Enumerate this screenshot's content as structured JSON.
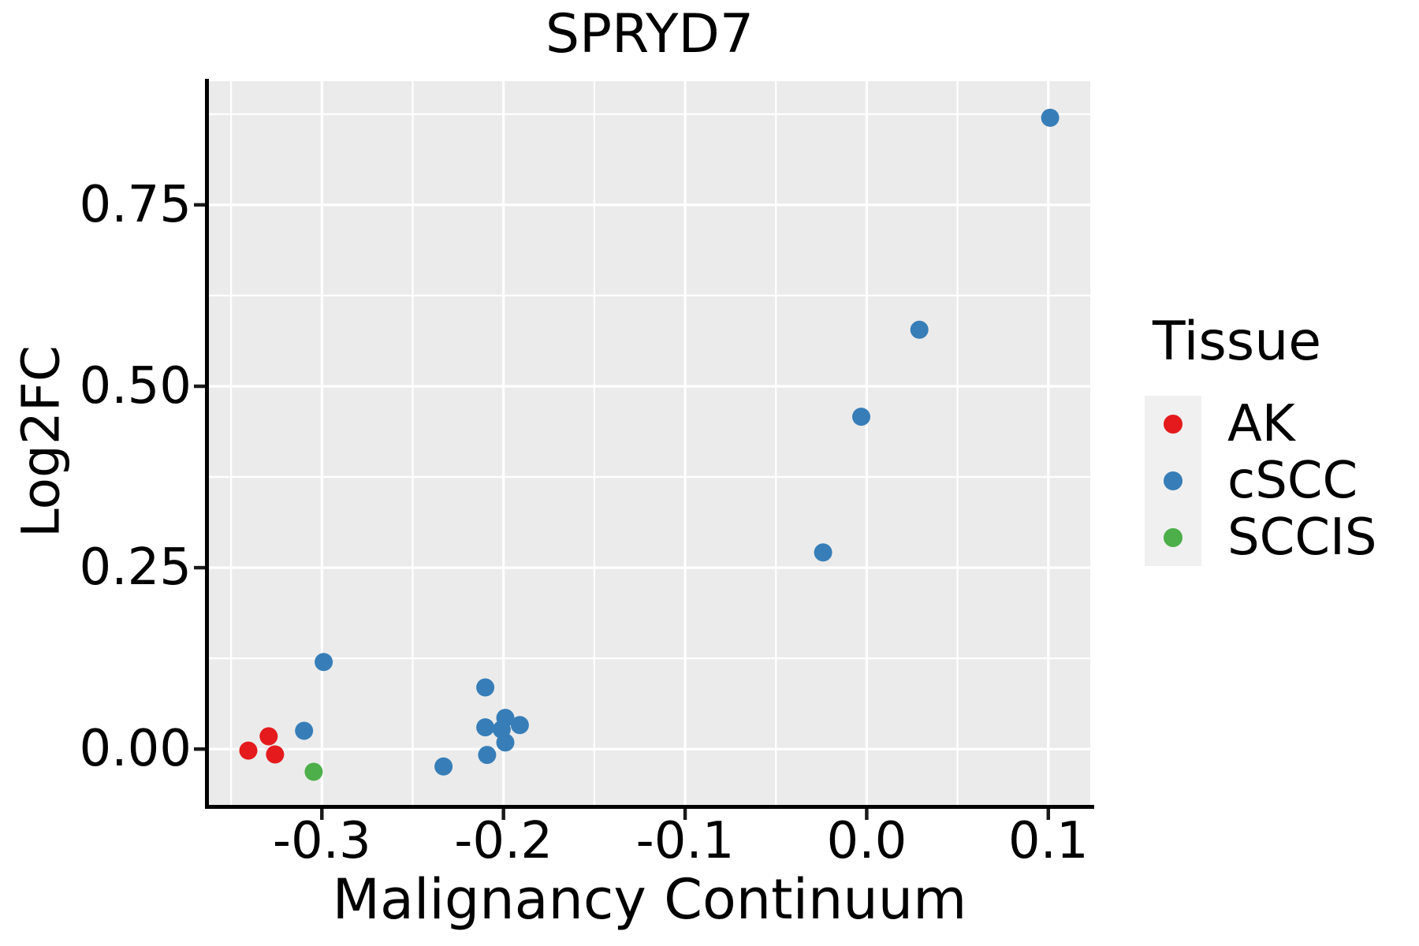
{
  "chart_data": {
    "type": "scatter",
    "title": "SPRYD7",
    "xlabel": "Malignancy Continuum",
    "ylabel": "Log2FC",
    "legend_title": "Tissue",
    "legend_position": "right",
    "grid": true,
    "xlim": [
      -0.3622,
      0.1231
    ],
    "ylim": [
      -0.0769,
      0.9204
    ],
    "x_ticks": {
      "values": [
        -0.3,
        -0.2,
        -0.1,
        0.0,
        0.1
      ],
      "labels": [
        "-0.3",
        "-0.2",
        "-0.1",
        "0.0",
        "0.1"
      ],
      "minor": [
        -0.35,
        -0.25,
        -0.15,
        -0.05,
        0.05
      ]
    },
    "y_ticks": {
      "values": [
        0.0,
        0.25,
        0.5,
        0.75
      ],
      "labels": [
        "0.00",
        "0.25",
        "0.50",
        "0.75"
      ],
      "minor": [
        0.125,
        0.375,
        0.625,
        0.875
      ]
    },
    "series": [
      {
        "name": "AK",
        "color": "#E41A1C",
        "points": [
          [
            -0.3405,
            -0.002
          ],
          [
            -0.3293,
            0.0176
          ],
          [
            -0.3258,
            -0.0074
          ]
        ]
      },
      {
        "name": "cSCC",
        "color": "#377EB8",
        "points": [
          [
            -0.3098,
            0.0252
          ],
          [
            -0.299,
            0.12
          ],
          [
            -0.233,
            -0.024
          ],
          [
            -0.21,
            0.085
          ],
          [
            -0.21,
            0.03
          ],
          [
            -0.201,
            0.027
          ],
          [
            -0.199,
            0.043
          ],
          [
            -0.199,
            0.009
          ],
          [
            -0.191,
            0.033
          ],
          [
            -0.209,
            -0.008
          ],
          [
            -0.024,
            0.271
          ],
          [
            -0.003,
            0.458
          ],
          [
            0.029,
            0.578
          ],
          [
            0.101,
            0.87
          ]
        ]
      },
      {
        "name": "SCCIS",
        "color": "#4DAF4A",
        "points": [
          [
            -0.3045,
            -0.0313
          ]
        ]
      }
    ]
  },
  "style": {
    "panel_bg": "#EBEBEB",
    "grid_color": "#FFFFFF",
    "axis_color": "#000000",
    "tick_color": "#1a1a1a",
    "text_color": "#000000",
    "legend_key_bg": "#F0F0F0",
    "point_radius": 11.5,
    "legend_dot_size": 24
  }
}
